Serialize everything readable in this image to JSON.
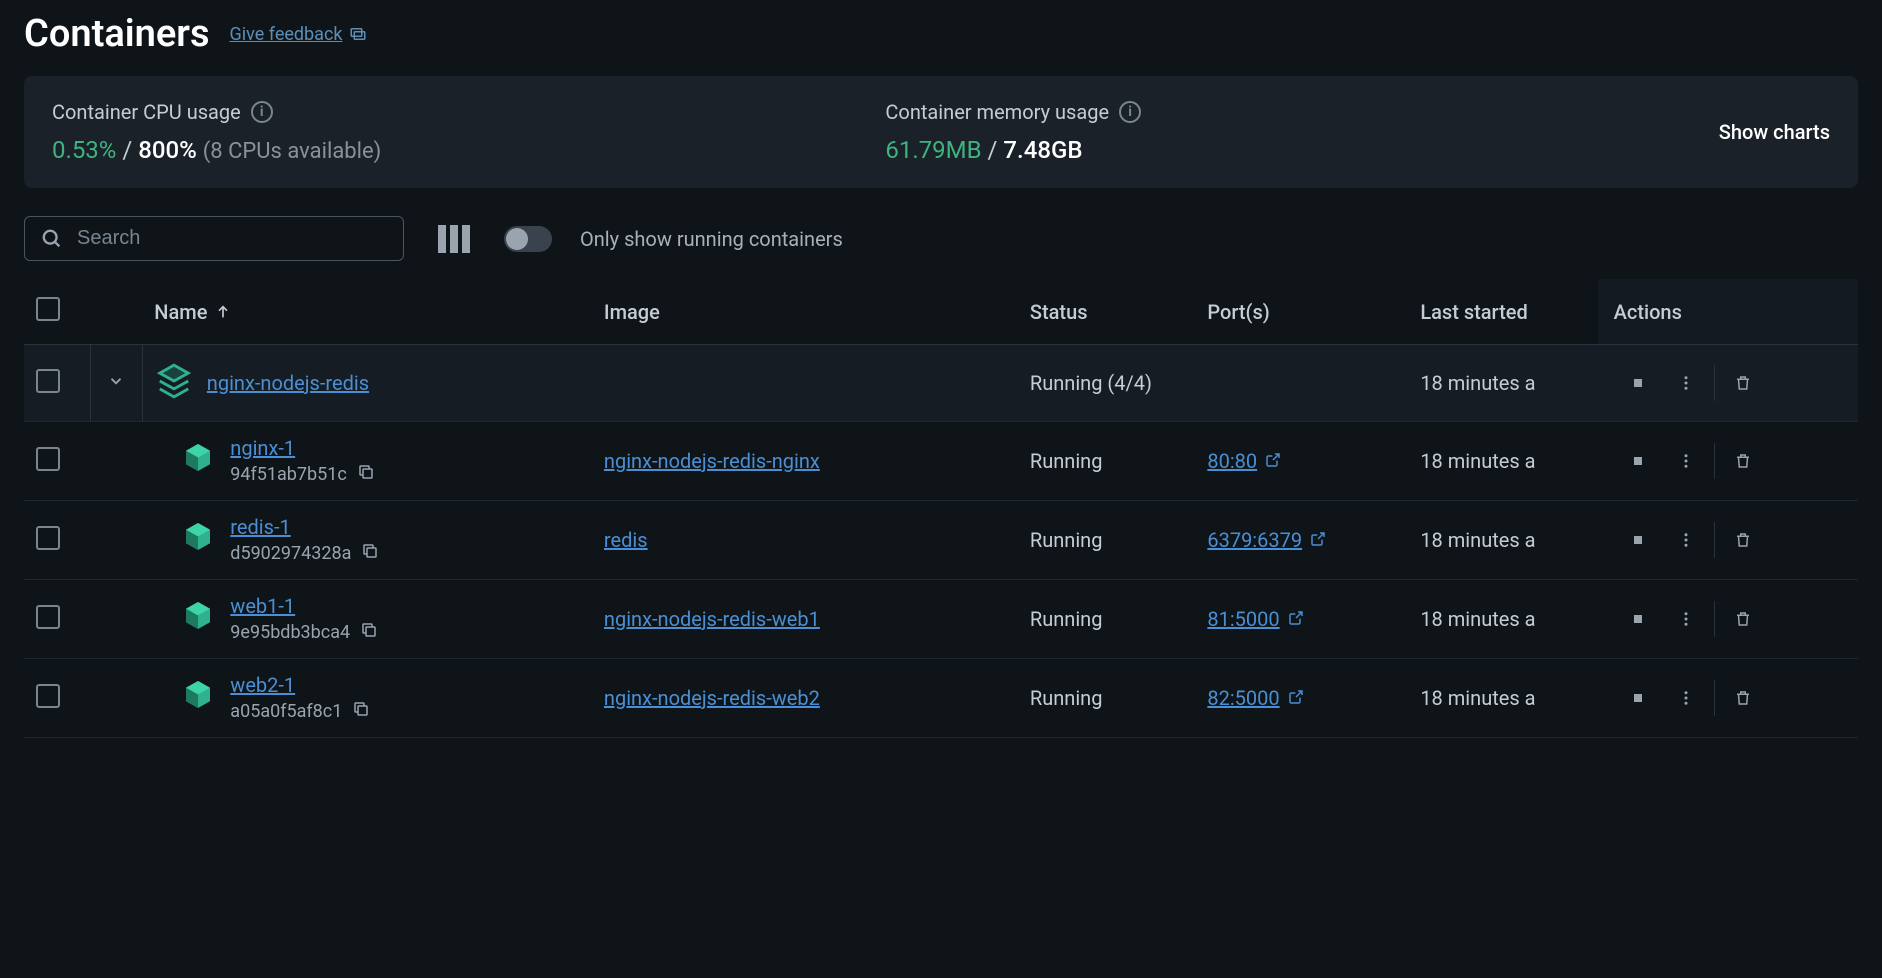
{
  "header": {
    "title": "Containers",
    "feedback_label": "Give feedback"
  },
  "stats": {
    "cpu": {
      "label": "Container CPU usage",
      "primary": "0.53%",
      "secondary": "800%",
      "detail": "(8 CPUs available)"
    },
    "memory": {
      "label": "Container memory usage",
      "primary": "61.79MB",
      "secondary": "7.48GB"
    },
    "show_charts_label": "Show charts"
  },
  "toolbar": {
    "search_placeholder": "Search",
    "toggle_label": "Only show running containers"
  },
  "table": {
    "headers": {
      "name": "Name",
      "image": "Image",
      "status": "Status",
      "ports": "Port(s)",
      "last_started": "Last started",
      "actions": "Actions"
    },
    "group": {
      "name": "nginx-nodejs-redis",
      "status": "Running (4/4)",
      "last_started": "18 minutes a"
    },
    "rows": [
      {
        "name": "nginx-1",
        "hash": "94f51ab7b51c",
        "image": "nginx-nodejs-redis-nginx",
        "status": "Running",
        "port": "80:80",
        "last_started": "18 minutes a"
      },
      {
        "name": "redis-1",
        "hash": "d5902974328a",
        "image": "redis",
        "status": "Running",
        "port": "6379:6379",
        "last_started": "18 minutes a"
      },
      {
        "name": "web1-1",
        "hash": "9e95bdb3bca4",
        "image": "nginx-nodejs-redis-web1",
        "status": "Running",
        "port": "81:5000",
        "last_started": "18 minutes a"
      },
      {
        "name": "web2-1",
        "hash": "a05a0f5af8c1",
        "image": "nginx-nodejs-redis-web2",
        "status": "Running",
        "port": "82:5000",
        "last_started": "18 minutes a"
      }
    ]
  },
  "colors": {
    "background": "#0f1419",
    "panel": "#1a2129",
    "text": "#c5cdd3",
    "text_muted": "#9aa4af",
    "accent_green": "#3fb37f",
    "link_blue": "#4a8fd4",
    "icon_teal": "#2fb08f",
    "border": "#2a333d"
  }
}
